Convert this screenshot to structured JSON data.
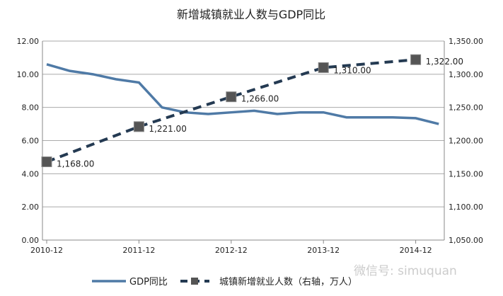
{
  "chart_data": {
    "type": "line",
    "title": "新增城镇就业人数与GDP同比",
    "x_ticks": [
      "2010-12",
      "2011-12",
      "2012-12",
      "2013-12",
      "2014-12"
    ],
    "left_axis": {
      "ylim": [
        0,
        12
      ],
      "ticks": [
        "0.00",
        "2.00",
        "4.00",
        "6.00",
        "8.00",
        "10.00",
        "12.00"
      ]
    },
    "right_axis": {
      "ylim": [
        1050,
        1350
      ],
      "ticks": [
        "1,050.00",
        "1,100.00",
        "1,150.00",
        "1,200.00",
        "1,250.00",
        "1,300.00",
        "1,350.00"
      ]
    },
    "grid": true,
    "legend_position": "bottom",
    "series": [
      {
        "name": "GDP同比",
        "axis": "left",
        "color": "#4f7aa6",
        "style": "solid",
        "x_index": [
          0,
          1,
          2,
          3,
          4,
          5,
          6,
          7,
          8,
          9,
          10,
          11,
          12,
          13,
          14,
          15,
          16,
          17
        ],
        "values": [
          10.6,
          10.2,
          10.0,
          9.7,
          9.5,
          8.0,
          7.7,
          7.6,
          7.7,
          7.8,
          7.6,
          7.7,
          7.7,
          7.4,
          7.4,
          7.4,
          7.35,
          7.0
        ]
      },
      {
        "name": "城镇新增就业人数（右轴，万人）",
        "axis": "right",
        "color": "#243a52",
        "style": "dashed",
        "x_index": [
          0,
          4,
          8,
          12,
          16
        ],
        "values": [
          1168,
          1221,
          1266,
          1310,
          1322
        ],
        "labels": [
          "1,168.00",
          "1,221.00",
          "1,266.00",
          "1,310.00",
          "1,322.00"
        ]
      }
    ],
    "watermark": "微信号: simuquan"
  }
}
